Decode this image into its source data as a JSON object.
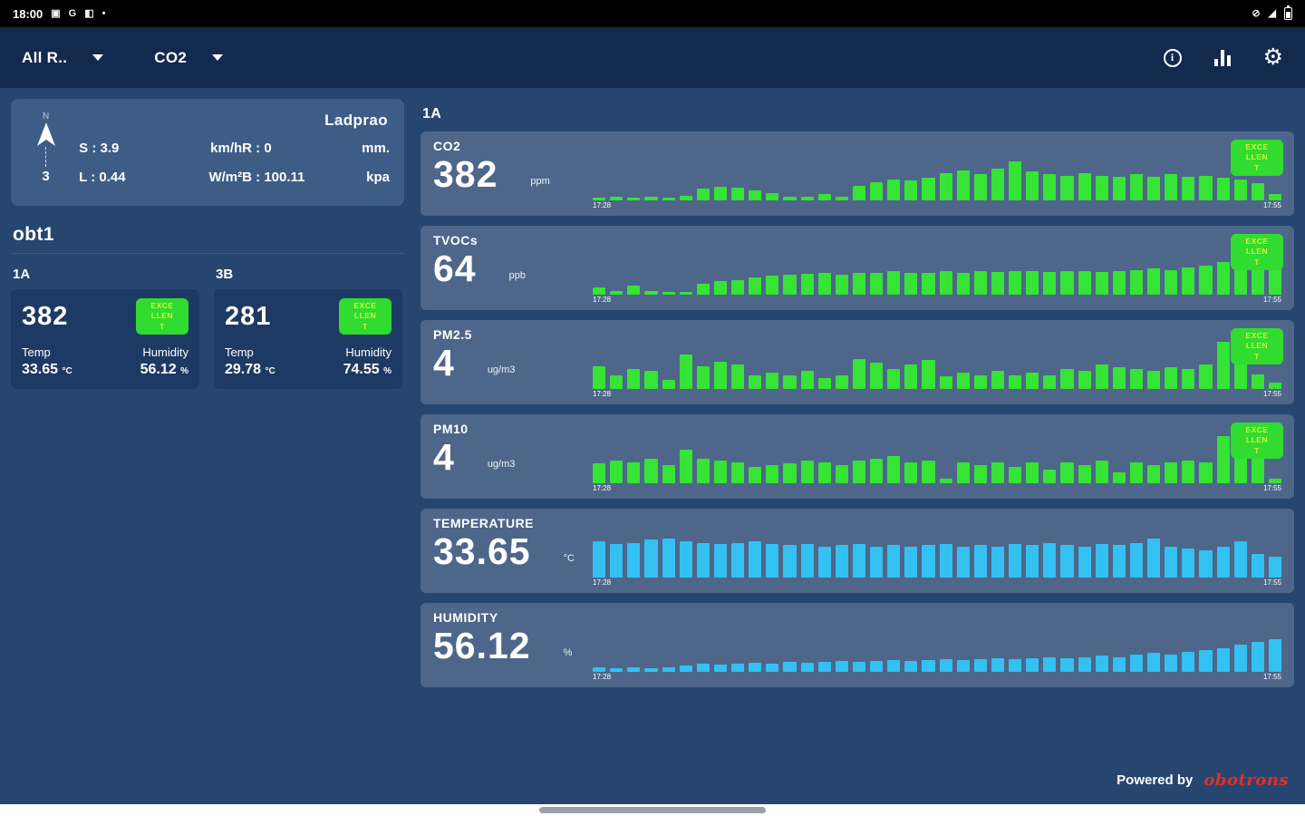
{
  "status_bar": {
    "time": "18:00",
    "left_icons": [
      {
        "name": "notification-square-icon",
        "glyph": "▣"
      },
      {
        "name": "google-icon",
        "glyph": "G"
      },
      {
        "name": "media-icon",
        "glyph": "◧"
      },
      {
        "name": "dot-icon",
        "glyph": "•"
      }
    ],
    "right_icons": [
      {
        "name": "mute-icon",
        "glyph": "⊘"
      },
      {
        "name": "signal-icon",
        "glyph": "◢"
      }
    ]
  },
  "app_bar": {
    "room_selector": "All R..",
    "metric_selector": "CO2",
    "info_glyph": "i",
    "gear_glyph": "⚙"
  },
  "weather": {
    "location": "Ladprao",
    "compass": {
      "direction_label": "N",
      "arrow": "compass-arrow-icon",
      "value": "3"
    },
    "metrics": [
      {
        "label": "S :",
        "value": "3.9",
        "unit": "km/h"
      },
      {
        "label": "R :",
        "value": "0",
        "unit": "mm."
      },
      {
        "label": "L :",
        "value": "0.44",
        "unit": "W/m²"
      },
      {
        "label": "B :",
        "value": "100.11",
        "unit": "kpa"
      }
    ]
  },
  "left": {
    "group_title": "obt1",
    "devices": [
      {
        "name": "1A",
        "value": "382",
        "badge": "EXCELLENT",
        "temp_label": "Temp",
        "temp_value": "33.65",
        "temp_unit": "°C",
        "hum_label": "Humidity",
        "hum_value": "56.12",
        "hum_unit": "%"
      },
      {
        "name": "3B",
        "value": "281",
        "badge": "EXCELLENT",
        "temp_label": "Temp",
        "temp_value": "29.78",
        "temp_unit": "°C",
        "hum_label": "Humidity",
        "hum_value": "74.55",
        "hum_unit": "%"
      }
    ]
  },
  "detail": {
    "title": "1A",
    "charts": [
      {
        "name": "CO2",
        "value": "382",
        "unit": "ppm",
        "badge": "EXCELLENT",
        "color": "#35e435",
        "time_start": "17:28",
        "time_end": "17:55",
        "bars": [
          6,
          8,
          6,
          8,
          6,
          10,
          24,
          28,
          26,
          20,
          14,
          8,
          8,
          12,
          8,
          30,
          36,
          42,
          40,
          46,
          55,
          60,
          52,
          64,
          78,
          58,
          52,
          50,
          54,
          50,
          48,
          52,
          48,
          52,
          48,
          50,
          46,
          42,
          34,
          12
        ]
      },
      {
        "name": "TVOCs",
        "value": "64",
        "unit": "ppb",
        "badge": "EXCELLENT",
        "color": "#35e435",
        "time_start": "17:28",
        "time_end": "17:55",
        "bars": [
          14,
          8,
          18,
          8,
          6,
          6,
          22,
          28,
          30,
          34,
          38,
          40,
          42,
          44,
          40,
          44,
          44,
          48,
          44,
          44,
          48,
          44,
          48,
          46,
          48,
          48,
          46,
          48,
          48,
          46,
          48,
          50,
          52,
          50,
          54,
          58,
          66,
          84,
          96,
          80
        ]
      },
      {
        "name": "PM2.5",
        "value": "4",
        "unit": "ug/m3",
        "badge": "EXCELLENT",
        "color": "#35e435",
        "time_start": "17:28",
        "time_end": "17:55",
        "bars": [
          45,
          28,
          40,
          36,
          18,
          70,
          45,
          55,
          50,
          28,
          32,
          28,
          36,
          22,
          28,
          60,
          52,
          40,
          50,
          58,
          26,
          32,
          28,
          36,
          28,
          32,
          28,
          40,
          36,
          50,
          44,
          40,
          36,
          44,
          40,
          50,
          95,
          85,
          30,
          12
        ]
      },
      {
        "name": "PM10",
        "value": "4",
        "unit": "ug/m3",
        "badge": "EXCELLENT",
        "color": "#35e435",
        "time_start": "17:28",
        "time_end": "17:55",
        "bars": [
          40,
          45,
          42,
          50,
          36,
          68,
          50,
          46,
          42,
          32,
          36,
          40,
          45,
          42,
          36,
          45,
          50,
          55,
          42,
          45,
          10,
          42,
          36,
          42,
          32,
          42,
          28,
          42,
          36,
          45,
          22,
          42,
          36,
          42,
          45,
          42,
          95,
          80,
          55,
          10
        ]
      },
      {
        "name": "TEMPERATURE",
        "value": "33.65",
        "unit": "°C",
        "badge": null,
        "color": "#33c1f2",
        "time_start": "17:28",
        "time_end": "17:55",
        "bars": [
          72,
          68,
          70,
          76,
          78,
          72,
          70,
          68,
          70,
          72,
          68,
          66,
          68,
          62,
          66,
          68,
          62,
          66,
          62,
          66,
          68,
          62,
          66,
          62,
          68,
          66,
          70,
          66,
          62,
          68,
          66,
          70,
          78,
          62,
          58,
          54,
          62,
          72,
          48,
          42
        ]
      },
      {
        "name": "HUMIDITY",
        "value": "56.12",
        "unit": "%",
        "badge": null,
        "color": "#33c1f2",
        "time_start": "17:28",
        "time_end": "17:55",
        "bars": [
          10,
          8,
          10,
          8,
          10,
          12,
          16,
          14,
          16,
          18,
          16,
          20,
          18,
          20,
          22,
          20,
          22,
          24,
          22,
          24,
          26,
          24,
          26,
          28,
          26,
          28,
          30,
          28,
          30,
          32,
          30,
          34,
          38,
          34,
          40,
          44,
          48,
          54,
          60,
          66
        ]
      }
    ]
  },
  "footer": {
    "powered_by": "Powered by",
    "brand": "obotrons"
  }
}
